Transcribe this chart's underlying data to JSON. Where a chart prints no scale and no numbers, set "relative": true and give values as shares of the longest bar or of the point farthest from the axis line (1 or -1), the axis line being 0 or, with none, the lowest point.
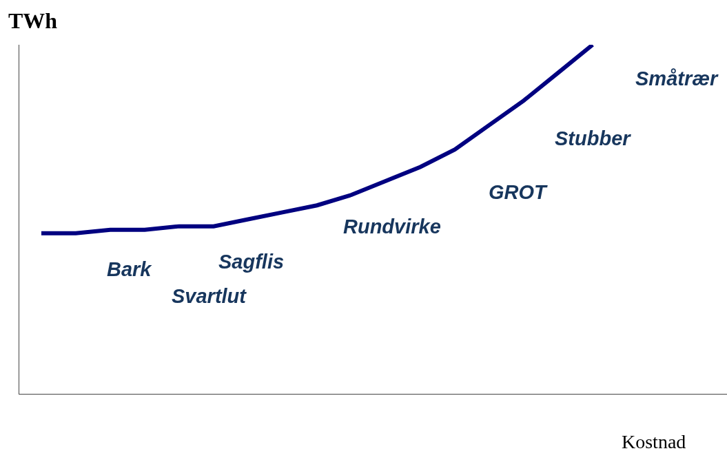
{
  "chart_data": {
    "type": "line",
    "relative": true,
    "xlabel": "Kostnad",
    "ylabel": "TWh",
    "categories": [
      null,
      null,
      null,
      null,
      null,
      null,
      null,
      null,
      null,
      null,
      null,
      null,
      null,
      null,
      null,
      null,
      null
    ],
    "series": [
      {
        "color": "#000080",
        "values": [
          0.46,
          0.46,
          0.47,
          0.47,
          0.48,
          0.48,
          0.5,
          0.52,
          0.54,
          0.57,
          0.61,
          0.65,
          0.7,
          0.77,
          0.84,
          0.92,
          1
        ]
      }
    ],
    "annotations": [
      "Bark",
      "Svartlut",
      "Sagflis",
      "Rundvirke",
      "GROT",
      "Stubber",
      "Småtrær"
    ],
    "grid": false,
    "marker": "none",
    "line_style": "solid"
  }
}
